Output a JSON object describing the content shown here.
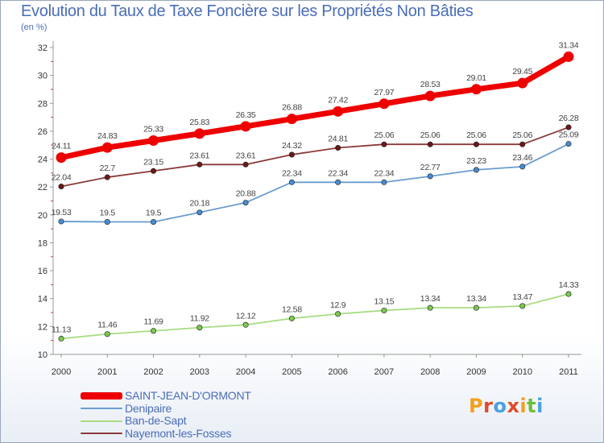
{
  "title": "Evolution du Taux de Taxe Foncière sur les Propriétés Non Bâties",
  "unit_label": "(en %)",
  "brand": {
    "letters": [
      "P",
      "r",
      "o",
      "x",
      "i",
      "t",
      "i"
    ]
  },
  "chart_data": {
    "type": "line",
    "title": "Evolution du Taux de Taxe Foncière sur les Propriétés Non Bâties",
    "ylabel": "(en %)",
    "xlabel": "",
    "categories": [
      "2000",
      "2001",
      "2002",
      "2003",
      "2004",
      "2005",
      "2006",
      "2007",
      "2008",
      "2009",
      "2010",
      "2011"
    ],
    "ylim": [
      10,
      32
    ],
    "yticks": [
      10,
      12,
      14,
      16,
      18,
      20,
      22,
      24,
      26,
      28,
      30,
      32
    ],
    "grid": false,
    "legend_position": "bottom-left",
    "series": [
      {
        "name": "SAINT-JEAN-D'ORMONT",
        "color": "#ee0000",
        "emphasis": true,
        "values": [
          24.11,
          24.83,
          25.33,
          25.83,
          26.35,
          26.88,
          27.42,
          27.97,
          28.53,
          29.01,
          29.45,
          31.34
        ],
        "labels": [
          "24.11",
          "24.83",
          "25.33",
          "25.83",
          "26.35",
          "26.88",
          "27.42",
          "27.97",
          "28.53",
          "29.01",
          "29.45",
          "31.34"
        ]
      },
      {
        "name": "Denipaire",
        "color": "#6a9ccf",
        "marker_color": "#4a8cd0",
        "emphasis": false,
        "values": [
          19.53,
          19.5,
          19.5,
          20.18,
          20.88,
          22.34,
          22.34,
          22.34,
          22.77,
          23.23,
          23.46,
          25.09
        ],
        "labels": [
          "19.53",
          "19.5",
          "19.5",
          "20.18",
          "20.88",
          "22.34",
          "22.34",
          "22.34",
          "22.77",
          "23.23",
          "23.46",
          "25.09"
        ]
      },
      {
        "name": "Ban-de-Sapt",
        "color": "#a8dc82",
        "marker_color": "#7cc850",
        "emphasis": false,
        "values": [
          11.13,
          11.46,
          11.69,
          11.92,
          12.12,
          12.58,
          12.9,
          13.15,
          13.34,
          13.34,
          13.47,
          14.33
        ],
        "labels": [
          "11.13",
          "11.46",
          "11.69",
          "11.92",
          "12.12",
          "12.58",
          "12.9",
          "13.15",
          "13.34",
          "13.34",
          "13.47",
          "14.33"
        ]
      },
      {
        "name": "Nayemont-les-Fosses",
        "color": "#8a3a3a",
        "marker_color": "#6a1a1a",
        "emphasis": false,
        "values": [
          22.04,
          22.7,
          23.15,
          23.61,
          23.61,
          24.32,
          24.81,
          25.06,
          25.06,
          25.06,
          25.06,
          26.28
        ],
        "labels": [
          "22.04",
          "22.7",
          "23.15",
          "23.61",
          "23.61",
          "24.32",
          "24.81",
          "25.06",
          "25.06",
          "25.06",
          "25.06",
          "26.28"
        ]
      }
    ]
  }
}
